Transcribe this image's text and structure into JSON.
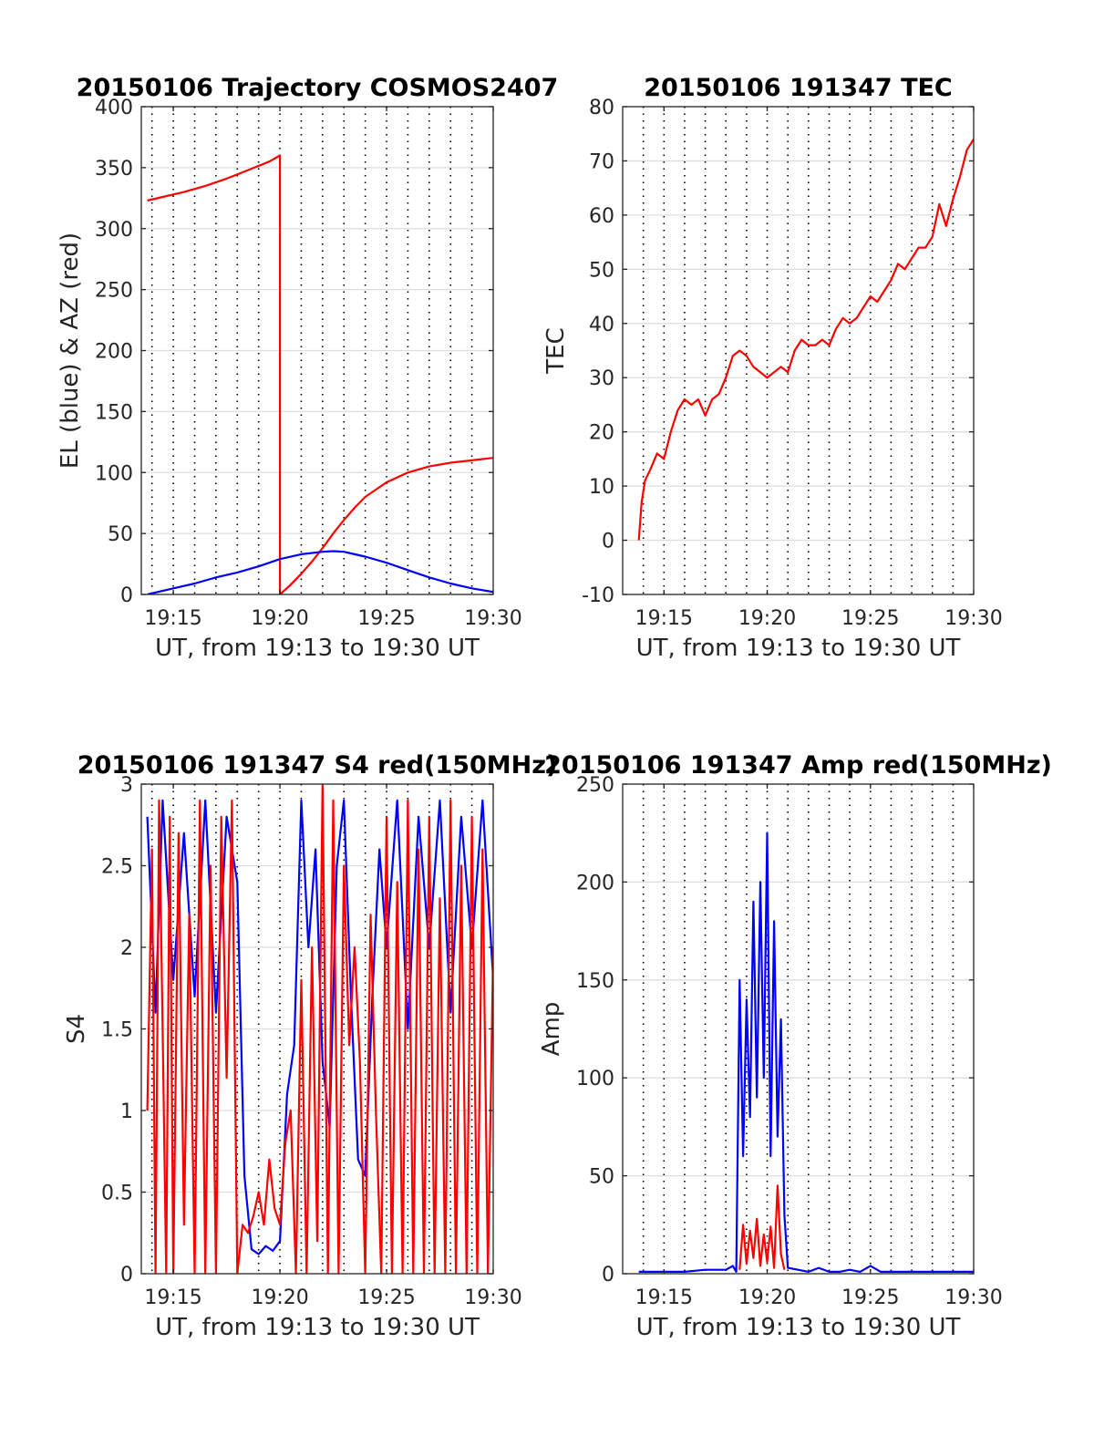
{
  "colors": {
    "el": "#0000ff",
    "az": "#ff0000",
    "tec": "#ff0000",
    "blue": "#0000ff",
    "red": "#ff0000"
  },
  "chart_data": [
    {
      "id": "traj",
      "type": "line",
      "title": "20150106 Trajectory COSMOS2407",
      "xlabel": "UT, from 19:13 to 19:30 UT",
      "ylabel": "EL (blue) & AZ (red)",
      "xlim": [
        "19:13:30",
        "19:30:00"
      ],
      "ylim": [
        0,
        400
      ],
      "yticks": [
        0,
        50,
        100,
        150,
        200,
        250,
        300,
        350,
        400
      ],
      "xticks": [
        "19:15",
        "19:20",
        "19:25",
        "19:30"
      ],
      "vgrid": [
        "19:14",
        "19:15",
        "19:16",
        "19:17",
        "19:18",
        "19:19",
        "19:20",
        "19:21",
        "19:22",
        "19:23",
        "19:24",
        "19:25",
        "19:26",
        "19:27",
        "19:28",
        "19:29"
      ],
      "hgrid": true,
      "series": [
        {
          "color": "#ff0000",
          "x": [
            "19:13:47",
            "19:14:30",
            "19:15:30",
            "19:16:30",
            "19:17:30",
            "19:18:30",
            "19:19:30",
            "19:20:00",
            "19:20:00",
            "19:20:30",
            "19:21:00",
            "19:21:30",
            "19:22:00",
            "19:22:30",
            "19:23:00",
            "19:23:30",
            "19:24:00",
            "19:25:00",
            "19:26:00",
            "19:27:00",
            "19:28:00",
            "19:29:00",
            "19:30:00"
          ],
          "y": [
            323,
            326,
            330,
            335,
            341,
            348,
            355,
            360,
            0,
            8,
            17,
            27,
            38,
            50,
            61,
            71,
            80,
            92,
            100,
            105,
            108,
            110,
            112
          ]
        },
        {
          "color": "#0000ff",
          "x": [
            "19:13:47",
            "19:15:00",
            "19:16:00",
            "19:17:00",
            "19:18:00",
            "19:19:00",
            "19:20:00",
            "19:21:00",
            "19:22:00",
            "19:22:30",
            "19:23:00",
            "19:24:00",
            "19:25:00",
            "19:26:00",
            "19:27:00",
            "19:28:00",
            "19:29:00",
            "19:30:00"
          ],
          "y": [
            0,
            5,
            9,
            14,
            18,
            23,
            29,
            33,
            35,
            35.5,
            35,
            31,
            26,
            20,
            14,
            9,
            5,
            2
          ]
        }
      ]
    },
    {
      "id": "tec",
      "type": "line",
      "title": "20150106 191347 TEC",
      "xlabel": "UT, from 19:13 to 19:30 UT",
      "ylabel": "TEC",
      "xlim": [
        "19:13:00",
        "19:30:00"
      ],
      "ylim": [
        -10,
        80
      ],
      "yticks": [
        -10,
        0,
        10,
        20,
        30,
        40,
        50,
        60,
        70,
        80
      ],
      "xticks": [
        "19:15",
        "19:20",
        "19:25",
        "19:30"
      ],
      "vgrid": [
        "19:14",
        "19:15",
        "19:16",
        "19:17",
        "19:18",
        "19:19",
        "19:20",
        "19:21",
        "19:22",
        "19:23",
        "19:24",
        "19:25",
        "19:26",
        "19:27",
        "19:28",
        "19:29"
      ],
      "hgrid": true,
      "series": [
        {
          "color": "#ff0000",
          "x": [
            "19:13:47",
            "19:13:55",
            "19:14:05",
            "19:14:20",
            "19:14:40",
            "19:15:00",
            "19:15:20",
            "19:15:40",
            "19:16:00",
            "19:16:20",
            "19:16:40",
            "19:17:00",
            "19:17:20",
            "19:17:40",
            "19:18:00",
            "19:18:20",
            "19:18:40",
            "19:19:00",
            "19:19:20",
            "19:19:40",
            "19:20:00",
            "19:20:20",
            "19:20:40",
            "19:21:00",
            "19:21:20",
            "19:21:40",
            "19:22:00",
            "19:22:20",
            "19:22:40",
            "19:23:00",
            "19:23:20",
            "19:23:40",
            "19:24:00",
            "19:24:20",
            "19:24:40",
            "19:25:00",
            "19:25:20",
            "19:25:40",
            "19:26:00",
            "19:26:20",
            "19:26:40",
            "19:27:00",
            "19:27:20",
            "19:27:40",
            "19:28:00",
            "19:28:20",
            "19:28:40",
            "19:29:00",
            "19:29:20",
            "19:29:40",
            "19:30:00"
          ],
          "y": [
            0,
            7,
            11,
            13,
            16,
            15,
            20,
            24,
            26,
            25,
            26,
            23,
            26,
            27,
            30,
            34,
            35,
            34,
            32,
            31,
            30,
            31,
            32,
            31,
            35,
            37,
            36,
            36,
            37,
            36,
            39,
            41,
            40,
            41,
            43,
            45,
            44,
            46,
            48,
            51,
            50,
            52,
            54,
            54,
            56,
            62,
            58,
            63,
            67,
            72,
            74
          ]
        }
      ]
    },
    {
      "id": "s4",
      "type": "line",
      "title": "20150106 191347 S4 red(150MHz)",
      "xlabel": "UT, from 19:13 to 19:30 UT",
      "ylabel": "S4",
      "xlim": [
        "19:13:30",
        "19:30:00"
      ],
      "ylim": [
        0,
        3
      ],
      "yticks": [
        0,
        0.5,
        1,
        1.5,
        2,
        2.5,
        3
      ],
      "ytick_labels": [
        "0",
        "0.5",
        "1",
        "1.5",
        "2",
        "2.5",
        "3"
      ],
      "xticks": [
        "19:15",
        "19:20",
        "19:25",
        "19:30"
      ],
      "vgrid": [
        "19:14",
        "19:15",
        "19:16",
        "19:17",
        "19:18",
        "19:19",
        "19:20",
        "19:21",
        "19:22",
        "19:23",
        "19:24",
        "19:25",
        "19:26",
        "19:27",
        "19:28",
        "19:29"
      ],
      "hgrid": true,
      "series": [
        {
          "color": "#0000ff",
          "x": [
            "19:13:47",
            "19:14:10",
            "19:14:30",
            "19:15:00",
            "19:15:30",
            "19:16:00",
            "19:16:30",
            "19:17:00",
            "19:17:30",
            "19:18:00",
            "19:18:20",
            "19:18:40",
            "19:19:00",
            "19:19:20",
            "19:19:40",
            "19:20:00",
            "19:20:20",
            "19:20:40",
            "19:21:00",
            "19:21:20",
            "19:21:40",
            "19:22:00",
            "19:22:20",
            "19:22:40",
            "19:23:00",
            "19:23:20",
            "19:23:40",
            "19:24:00",
            "19:24:20",
            "19:24:40",
            "19:25:00",
            "19:25:30",
            "19:26:00",
            "19:26:30",
            "19:27:00",
            "19:27:30",
            "19:28:00",
            "19:28:30",
            "19:29:00",
            "19:29:30",
            "19:30:00"
          ],
          "y": [
            2.8,
            1.6,
            2.9,
            1.8,
            2.7,
            1.7,
            2.9,
            1.6,
            2.8,
            2.4,
            0.6,
            0.15,
            0.12,
            0.17,
            0.14,
            0.2,
            1.1,
            1.4,
            2.9,
            2.0,
            2.6,
            1.3,
            0.9,
            2.5,
            2.9,
            1.7,
            0.7,
            0.6,
            1.7,
            2.6,
            2.0,
            2.9,
            1.5,
            2.8,
            2.0,
            2.9,
            1.6,
            2.8,
            2.0,
            2.9,
            1.8
          ]
        },
        {
          "color": "#ff0000",
          "x": [
            "19:13:47",
            "19:14:00",
            "19:14:10",
            "19:14:20",
            "19:14:30",
            "19:14:40",
            "19:14:50",
            "19:15:00",
            "19:15:15",
            "19:15:30",
            "19:15:45",
            "19:16:00",
            "19:16:15",
            "19:16:30",
            "19:16:45",
            "19:17:00",
            "19:17:15",
            "19:17:30",
            "19:17:45",
            "19:18:00",
            "19:18:15",
            "19:18:30",
            "19:18:45",
            "19:19:00",
            "19:19:15",
            "19:19:30",
            "19:19:45",
            "19:20:00",
            "19:20:15",
            "19:20:30",
            "19:20:45",
            "19:21:00",
            "19:21:15",
            "19:21:30",
            "19:21:45",
            "19:22:00",
            "19:22:15",
            "19:22:30",
            "19:22:45",
            "19:23:00",
            "19:23:15",
            "19:23:30",
            "19:23:45",
            "19:24:00",
            "19:24:15",
            "19:24:30",
            "19:24:45",
            "19:25:00",
            "19:25:15",
            "19:25:30",
            "19:25:45",
            "19:26:00",
            "19:26:15",
            "19:26:30",
            "19:26:45",
            "19:27:00",
            "19:27:15",
            "19:27:30",
            "19:27:45",
            "19:28:00",
            "19:28:15",
            "19:28:30",
            "19:28:45",
            "19:29:00",
            "19:29:15",
            "19:29:30",
            "19:29:45",
            "19:30:00"
          ],
          "y": [
            1.0,
            2.6,
            0.0,
            2.9,
            1.5,
            0.0,
            2.8,
            0.0,
            2.7,
            0.3,
            2.2,
            0.0,
            2.9,
            0.0,
            2.5,
            0.0,
            2.8,
            1.2,
            2.9,
            0.0,
            0.3,
            0.25,
            0.35,
            0.5,
            0.3,
            0.7,
            0.4,
            0.3,
            0.8,
            1.0,
            0.0,
            1.8,
            0.0,
            2.0,
            0.2,
            3.0,
            0.0,
            2.9,
            0.0,
            2.5,
            1.4,
            2.0,
            1.3,
            0.0,
            2.2,
            1.0,
            0.0,
            2.8,
            0.0,
            2.4,
            0.0,
            2.9,
            0.0,
            2.6,
            0.0,
            2.8,
            0.0,
            2.3,
            0.0,
            2.9,
            0.0,
            2.5,
            0.0,
            2.8,
            0.0,
            2.6,
            0.0,
            2.0
          ]
        }
      ]
    },
    {
      "id": "amp",
      "type": "line",
      "title": "20150106 191347 Amp red(150MHz)",
      "xlabel": "UT, from 19:13 to 19:30 UT",
      "ylabel": "Amp",
      "xlim": [
        "19:13:00",
        "19:30:00"
      ],
      "ylim": [
        0,
        250
      ],
      "yticks": [
        0,
        50,
        100,
        150,
        200,
        250
      ],
      "xticks": [
        "19:15",
        "19:20",
        "19:25",
        "19:30"
      ],
      "vgrid": [
        "19:14",
        "19:15",
        "19:16",
        "19:17",
        "19:18",
        "19:19",
        "19:20",
        "19:21",
        "19:22",
        "19:23",
        "19:24",
        "19:25",
        "19:26",
        "19:27",
        "19:28",
        "19:29"
      ],
      "hgrid": true,
      "series": [
        {
          "color": "#0000ff",
          "x": [
            "19:13:47",
            "19:15:00",
            "19:16:00",
            "19:17:00",
            "19:18:00",
            "19:18:20",
            "19:18:30",
            "19:18:40",
            "19:18:50",
            "19:19:00",
            "19:19:10",
            "19:19:20",
            "19:19:30",
            "19:19:40",
            "19:19:50",
            "19:20:00",
            "19:20:10",
            "19:20:20",
            "19:20:30",
            "19:20:40",
            "19:20:50",
            "19:21:00",
            "19:21:30",
            "19:22:00",
            "19:22:30",
            "19:23:00",
            "19:23:30",
            "19:24:00",
            "19:24:30",
            "19:25:00",
            "19:25:30",
            "19:26:00",
            "19:27:00",
            "19:28:00",
            "19:29:00",
            "19:30:00"
          ],
          "y": [
            1,
            1,
            1,
            2,
            2,
            4,
            1,
            150,
            60,
            140,
            80,
            190,
            90,
            200,
            100,
            225,
            60,
            180,
            70,
            130,
            30,
            3,
            2,
            1,
            3,
            1,
            1,
            2,
            1,
            4,
            1,
            1,
            1,
            1,
            1,
            1
          ]
        },
        {
          "color": "#ff0000",
          "x": [
            "19:18:40",
            "19:18:50",
            "19:19:00",
            "19:19:10",
            "19:19:20",
            "19:19:30",
            "19:19:40",
            "19:19:50",
            "19:20:00",
            "19:20:10",
            "19:20:20",
            "19:20:30",
            "19:20:40",
            "19:20:50"
          ],
          "y": [
            2,
            25,
            5,
            22,
            8,
            28,
            4,
            20,
            6,
            24,
            3,
            45,
            10,
            2
          ]
        }
      ]
    }
  ]
}
